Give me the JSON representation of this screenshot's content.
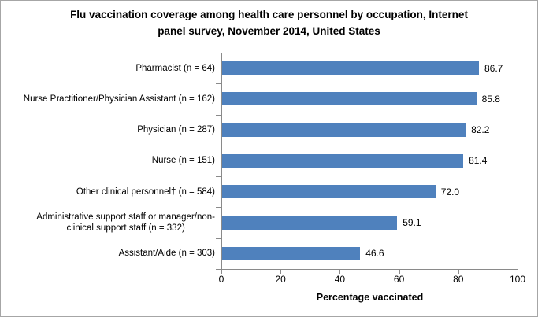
{
  "colors": {
    "bar": "#4F81BD",
    "axis": "#8A8A8A",
    "border": "#A6A6A6",
    "background": "#FFFFFF",
    "text": "#000000"
  },
  "chart_data": {
    "type": "bar",
    "orientation": "horizontal",
    "title": "Flu vaccination coverage among health care personnel by occupation, Internet panel survey, November 2014, United States",
    "title_display": "Flu vaccination coverage among health care personnel by occupation, Internet\npanel survey, November 2014, United States",
    "categories": [
      "Pharmacist (n = 64)",
      "Nurse Practitioner/Physician Assistant (n = 162)",
      "Physician (n = 287)",
      "Nurse (n = 151)",
      "Other clinical personnel† (n = 584)",
      "Administrative support staff or manager/non-\nclinical support staff (n = 332)",
      "Assistant/Aide (n = 303)"
    ],
    "values": [
      86.7,
      85.8,
      82.2,
      81.4,
      72.0,
      59.1,
      46.6
    ],
    "value_labels": [
      "86.7",
      "85.8",
      "82.2",
      "81.4",
      "72.0",
      "59.1",
      "46.6"
    ],
    "xlabel": "Percentage vaccinated",
    "x_ticks": [
      0,
      20,
      40,
      60,
      80,
      100
    ],
    "xlim": [
      0,
      100
    ],
    "grid": false,
    "legend": false,
    "bar_color": "#4F81BD"
  }
}
